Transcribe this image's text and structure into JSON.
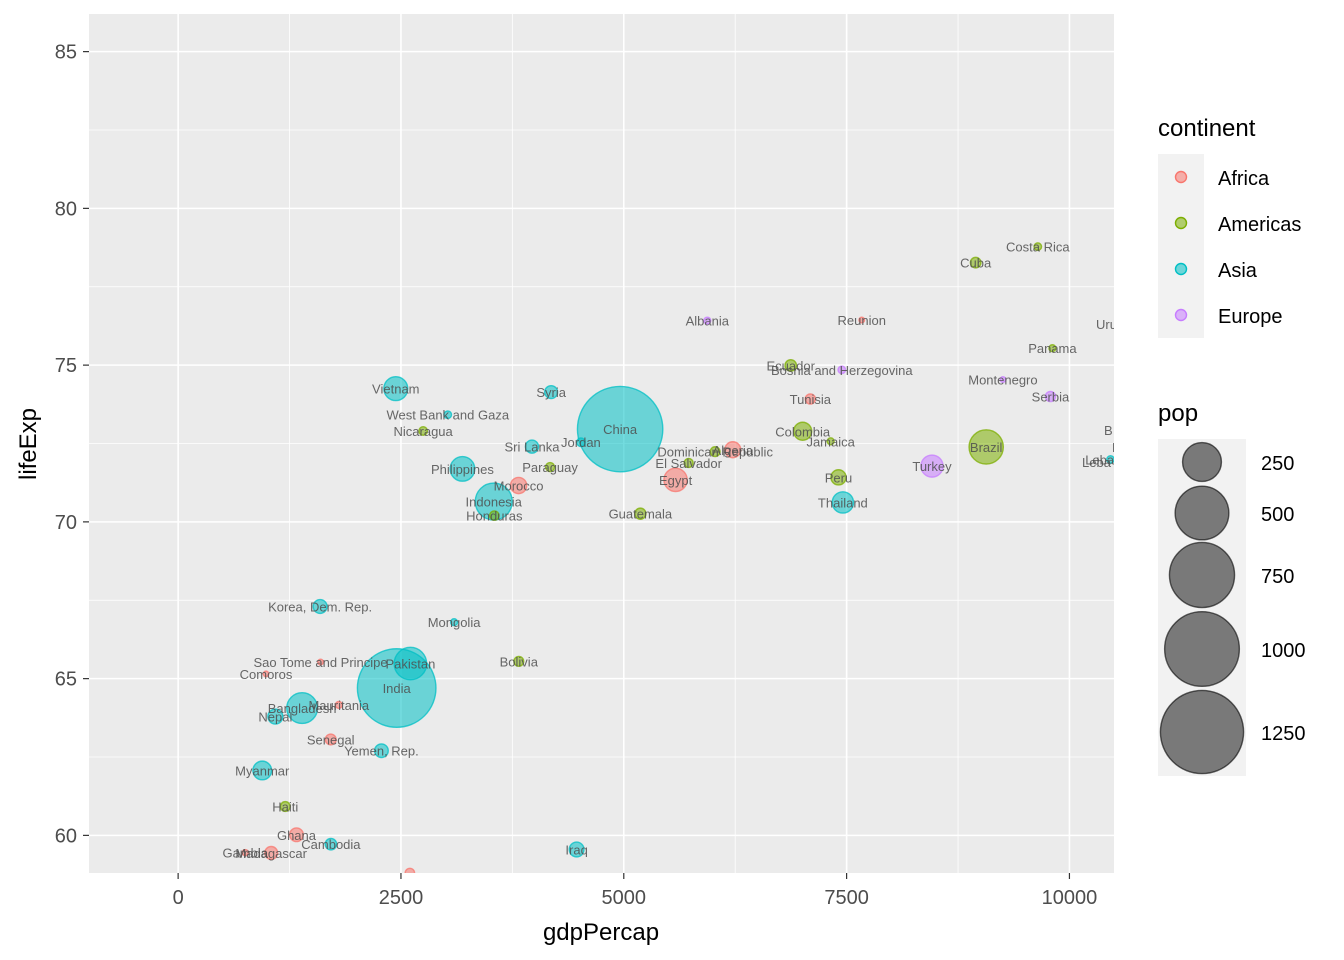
{
  "chart_data": {
    "type": "scatter",
    "xlabel": "gdpPercap",
    "ylabel": "lifeExp",
    "xlim": [
      -1000,
      10500
    ],
    "ylim": [
      58.8,
      86.2
    ],
    "x_ticks": [
      0,
      2500,
      5000,
      7500,
      10000
    ],
    "y_ticks": [
      60,
      65,
      70,
      75,
      80,
      85
    ],
    "grid": true,
    "legend_position": "right",
    "color_legend": {
      "title": "continent",
      "items": [
        {
          "name": "Africa",
          "color": "#F8766D"
        },
        {
          "name": "Americas",
          "color": "#7CAE00"
        },
        {
          "name": "Asia",
          "color": "#00BFC4"
        },
        {
          "name": "Europe",
          "color": "#C77CFF"
        }
      ]
    },
    "size_legend": {
      "title": "pop",
      "breaks": [
        250,
        500,
        750,
        1000,
        1250
      ]
    },
    "points": [
      {
        "label": "China",
        "x": 4959,
        "y": 72.96,
        "pop": 1319,
        "continent": "Asia"
      },
      {
        "label": "India",
        "x": 2452,
        "y": 64.7,
        "pop": 1110,
        "continent": "Asia"
      },
      {
        "label": "Pakistan",
        "x": 2606,
        "y": 65.48,
        "pop": 169,
        "continent": "Asia"
      },
      {
        "label": "Indonesia",
        "x": 3541,
        "y": 70.65,
        "pop": 224,
        "continent": "Asia"
      },
      {
        "label": "Bangladesh",
        "x": 1391,
        "y": 64.06,
        "pop": 150,
        "continent": "Asia"
      },
      {
        "label": "Brazil",
        "x": 9066,
        "y": 72.39,
        "pop": 190,
        "continent": "Americas"
      },
      {
        "label": "Philippines",
        "x": 3190,
        "y": 71.69,
        "pop": 91,
        "continent": "Asia"
      },
      {
        "label": "Vietnam",
        "x": 2442,
        "y": 74.25,
        "pop": 85,
        "continent": "Asia"
      },
      {
        "label": "Egypt",
        "x": 5581,
        "y": 71.34,
        "pop": 80,
        "continent": "Africa"
      },
      {
        "label": "Turkey",
        "x": 8458,
        "y": 71.78,
        "pop": 71,
        "continent": "Europe"
      },
      {
        "label": "Thailand",
        "x": 7458,
        "y": 70.62,
        "pop": 65,
        "continent": "Asia"
      },
      {
        "label": "Myanmar",
        "x": 944,
        "y": 62.07,
        "pop": 48,
        "continent": "Asia"
      },
      {
        "label": "Colombia",
        "x": 7007,
        "y": 72.89,
        "pop": 44,
        "continent": "Americas"
      },
      {
        "label": "Algeria",
        "x": 6223,
        "y": 72.3,
        "pop": 33,
        "continent": "Africa"
      },
      {
        "label": "Korea, Dem. Rep.",
        "x": 1593,
        "y": 67.3,
        "pop": 23,
        "continent": "Asia"
      },
      {
        "label": "Morocco",
        "x": 3820,
        "y": 71.16,
        "pop": 34,
        "continent": "Africa"
      },
      {
        "label": "Peru",
        "x": 7409,
        "y": 71.42,
        "pop": 29,
        "continent": "Americas"
      },
      {
        "label": "Nepal",
        "x": 1091,
        "y": 63.79,
        "pop": 28,
        "continent": "Asia"
      },
      {
        "label": "Iraq",
        "x": 4471,
        "y": 59.55,
        "pop": 27,
        "continent": "Asia"
      },
      {
        "label": "Yemen, Rep.",
        "x": 2281,
        "y": 62.7,
        "pop": 22,
        "continent": "Asia"
      },
      {
        "label": "Ghana",
        "x": 1328,
        "y": 60.02,
        "pop": 22,
        "continent": "Africa"
      },
      {
        "label": "Madagascar",
        "x": 1044,
        "y": 59.44,
        "pop": 19,
        "continent": "Africa"
      },
      {
        "label": "Syria",
        "x": 4185,
        "y": 74.14,
        "pop": 19,
        "continent": "Asia"
      },
      {
        "label": "Sri Lanka",
        "x": 3970,
        "y": 72.4,
        "pop": 20,
        "continent": "Asia"
      },
      {
        "label": "Guatemala",
        "x": 5186,
        "y": 70.26,
        "pop": 13,
        "continent": "Americas"
      },
      {
        "label": "Ecuador",
        "x": 6873,
        "y": 74.99,
        "pop": 14,
        "continent": "Americas"
      },
      {
        "label": "Cambodia",
        "x": 1714,
        "y": 59.72,
        "pop": 14,
        "continent": "Asia"
      },
      {
        "label": "Senegal",
        "x": 1712,
        "y": 63.06,
        "pop": 12,
        "continent": "Africa"
      },
      {
        "label": "Cuba",
        "x": 8948,
        "y": 78.27,
        "pop": 11,
        "continent": "Americas"
      },
      {
        "label": "Tunisia",
        "x": 7093,
        "y": 73.92,
        "pop": 10,
        "continent": "Africa"
      },
      {
        "label": "Haiti",
        "x": 1202,
        "y": 60.92,
        "pop": 9,
        "continent": "Americas"
      },
      {
        "label": "Bolivia",
        "x": 3822,
        "y": 65.55,
        "pop": 9,
        "continent": "Americas"
      },
      {
        "label": "Dominican Republic",
        "x": 6025,
        "y": 72.24,
        "pop": 9,
        "continent": "Americas"
      },
      {
        "label": "Honduras",
        "x": 3548,
        "y": 70.2,
        "pop": 8,
        "continent": "Americas"
      },
      {
        "label": "Serbia",
        "x": 9787,
        "y": 74.0,
        "pop": 10,
        "continent": "Europe"
      },
      {
        "label": "El Salvador",
        "x": 5728,
        "y": 71.88,
        "pop": 7,
        "continent": "Americas"
      },
      {
        "label": "Paraguay",
        "x": 4173,
        "y": 71.75,
        "pop": 7,
        "continent": "Americas"
      },
      {
        "label": "Nicaragua",
        "x": 2749,
        "y": 72.9,
        "pop": 6,
        "continent": "Americas"
      },
      {
        "label": "Jordan",
        "x": 4519,
        "y": 72.54,
        "pop": 6,
        "continent": "Asia"
      },
      {
        "label": "West Bank and Gaza",
        "x": 3025,
        "y": 73.42,
        "pop": 4,
        "continent": "Asia"
      },
      {
        "label": "Bosnia and Herzegovina",
        "x": 7446,
        "y": 74.85,
        "pop": 4,
        "continent": "Europe"
      },
      {
        "label": "Costa Rica",
        "x": 9645,
        "y": 78.78,
        "pop": 4,
        "continent": "Americas"
      },
      {
        "label": "Lebanon",
        "x": 10461,
        "y": 71.99,
        "pop": 4,
        "continent": "Asia"
      },
      {
        "label": "Mauritania",
        "x": 1803,
        "y": 64.16,
        "pop": 3,
        "continent": "Africa"
      },
      {
        "label": "Panama",
        "x": 9809,
        "y": 75.54,
        "pop": 3,
        "continent": "Americas"
      },
      {
        "label": "Mongolia",
        "x": 3096,
        "y": 66.8,
        "pop": 3,
        "continent": "Asia"
      },
      {
        "label": "Albania",
        "x": 5937,
        "y": 76.42,
        "pop": 3,
        "continent": "Europe"
      },
      {
        "label": "Jamaica",
        "x": 7321,
        "y": 72.57,
        "pop": 3,
        "continent": "Americas"
      },
      {
        "label": "Gambia",
        "x": 753,
        "y": 59.45,
        "pop": 2,
        "continent": "Africa"
      },
      {
        "label": "Reunion",
        "x": 7670,
        "y": 76.44,
        "pop": 1,
        "continent": "Africa"
      },
      {
        "label": "Comoros",
        "x": 986,
        "y": 65.15,
        "pop": 1,
        "continent": "Africa"
      },
      {
        "label": "Montenegro",
        "x": 9254,
        "y": 74.54,
        "pop": 1,
        "continent": "Europe"
      },
      {
        "label": "Sao Tome and Principe",
        "x": 1598,
        "y": 65.53,
        "pop": 0.2,
        "continent": "Africa"
      },
      {
        "label": "",
        "x": 2600,
        "y": 58.8,
        "pop": 8,
        "continent": "Africa"
      }
    ],
    "clipped_labels": [
      "Uru",
      "B",
      "F",
      "Leba"
    ]
  }
}
